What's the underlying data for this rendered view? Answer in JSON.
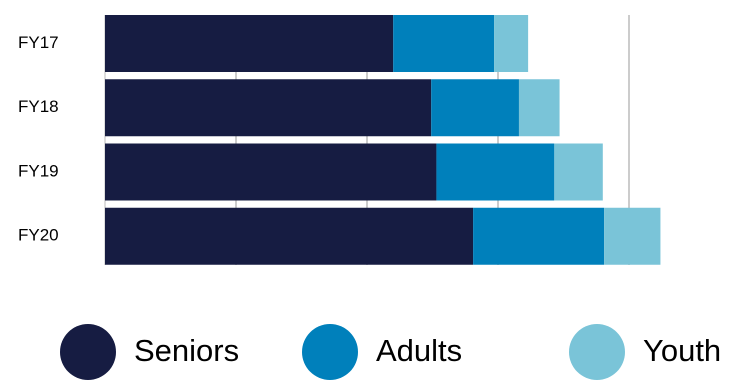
{
  "chart_data": {
    "type": "stacked-barh",
    "categories": [
      "FY17",
      "FY18",
      "FY19",
      "FY20"
    ],
    "series": [
      {
        "name": "Seniors",
        "color": "#161c42",
        "values": [
          220,
          249,
          253,
          281
        ]
      },
      {
        "name": "Adults",
        "color": "#0080bb",
        "values": [
          77,
          67,
          90,
          100
        ]
      },
      {
        "name": "Youth",
        "color": "#7ac4d8",
        "values": [
          26,
          31,
          37,
          43
        ]
      }
    ],
    "xlim": [
      0,
      450
    ],
    "xticks": [
      0,
      100,
      200,
      300,
      400
    ],
    "grid": true
  }
}
